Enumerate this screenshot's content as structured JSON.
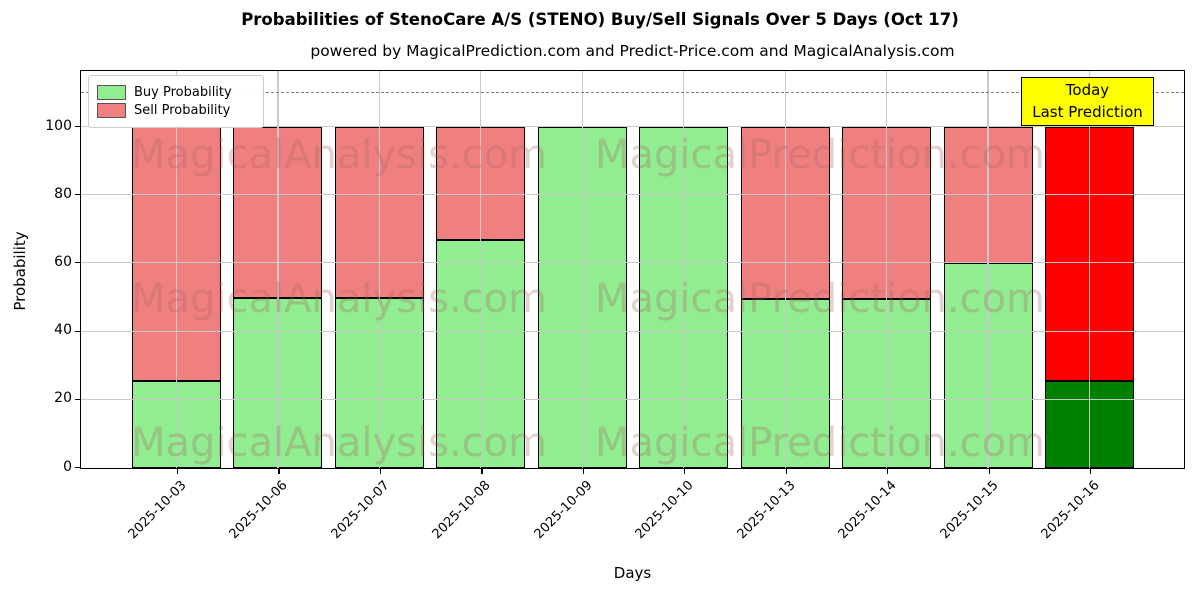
{
  "title": "Probabilities of StenoCare A/S (STENO) Buy/Sell Signals Over 5 Days (Oct 17)",
  "subtitle": "powered by MagicalPrediction.com and Predict-Price.com and MagicalAnalysis.com",
  "legend": [
    {
      "label": "Buy Probability",
      "color": "#90EE90"
    },
    {
      "label": "Sell Probability",
      "color": "#F08080"
    }
  ],
  "annotation": {
    "line1": "Today",
    "line2": "Last Prediction",
    "bg_color": "#FFFF00"
  },
  "watermarks": {
    "left_text": "MagicalAnalysis.com",
    "right_text": "MagicalPrediction.com"
  },
  "chart_data": {
    "type": "bar",
    "stacked": true,
    "title": "Probabilities of StenoCare A/S (STENO) Buy/Sell Signals Over 5 Days (Oct 17)",
    "categories": [
      "2025-10-03",
      "2025-10-06",
      "2025-10-07",
      "2025-10-08",
      "2025-10-09",
      "2025-10-10",
      "2025-10-13",
      "2025-10-14",
      "2025-10-15",
      "2025-10-16"
    ],
    "series": [
      {
        "name": "Buy Probability",
        "color": "#90EE90",
        "today_color": "#008000",
        "values": [
          25.5,
          50,
          50,
          67,
          100,
          100,
          49.5,
          49.5,
          60,
          25.5
        ]
      },
      {
        "name": "Sell Probability",
        "color": "#F08080",
        "today_color": "#FF0000",
        "values": [
          74.5,
          50,
          50,
          33,
          0,
          0,
          50.5,
          50.5,
          40,
          74.5
        ]
      }
    ],
    "today_index": 9,
    "xlabel": "Days",
    "ylabel": "Probability",
    "yticks": [
      0,
      20,
      40,
      60,
      80,
      100
    ],
    "ylim": [
      0,
      116
    ],
    "dashed_line_y": 110,
    "grid": true,
    "legend_position": "upper-left"
  }
}
